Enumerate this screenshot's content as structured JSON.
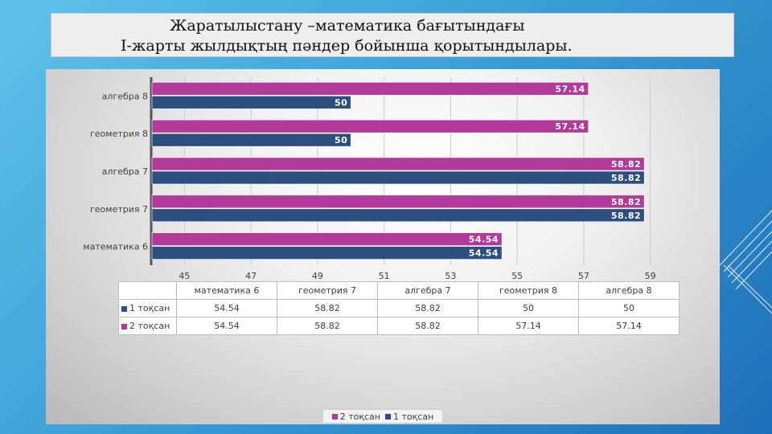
{
  "slide": {
    "title_line1": "Жаратылыстану –математика бағытындағы",
    "title_line2": "І-жарты жылдықтың пәндер бойынша қорытындылары."
  },
  "colors": {
    "series_1": "#2d4f7f",
    "series_2": "#b23a9a"
  },
  "chart_data": {
    "type": "bar",
    "orientation": "horizontal",
    "categories": [
      "математика 6",
      "геометрия 7",
      "алгебра 7",
      "геометрия 8",
      "алгебра 8"
    ],
    "series": [
      {
        "name": "1 тоқсан",
        "values": [
          54.54,
          58.82,
          58.82,
          50,
          50
        ]
      },
      {
        "name": "2 тоқсан",
        "values": [
          54.54,
          58.82,
          58.82,
          57.14,
          57.14
        ]
      }
    ],
    "x_ticks": [
      "45",
      "47",
      "49",
      "51",
      "53",
      "55",
      "57",
      "59"
    ],
    "xlim": [
      44,
      60
    ],
    "data_labels": {
      "1 тоқсан": [
        "54.54",
        "58.82",
        "58.82",
        "50",
        "50"
      ],
      "2 тоқсан": [
        "54.54",
        "58.82",
        "58.82",
        "57.14",
        "57.14"
      ]
    },
    "table": {
      "headers": [
        "математика 6",
        "геометрия 7",
        "алгебра 7",
        "геометрия 8",
        "алгебра 8"
      ],
      "rows": [
        {
          "label": "1 тоқсан",
          "cells": [
            "54.54",
            "58.82",
            "58.82",
            "50",
            "50"
          ]
        },
        {
          "label": "2 тоқсан",
          "cells": [
            "54.54",
            "58.82",
            "58.82",
            "57.14",
            "57.14"
          ]
        }
      ]
    },
    "legend": [
      "2 тоқсан",
      "1 тоқсан"
    ],
    "legend_position": "bottom",
    "grid": true
  }
}
